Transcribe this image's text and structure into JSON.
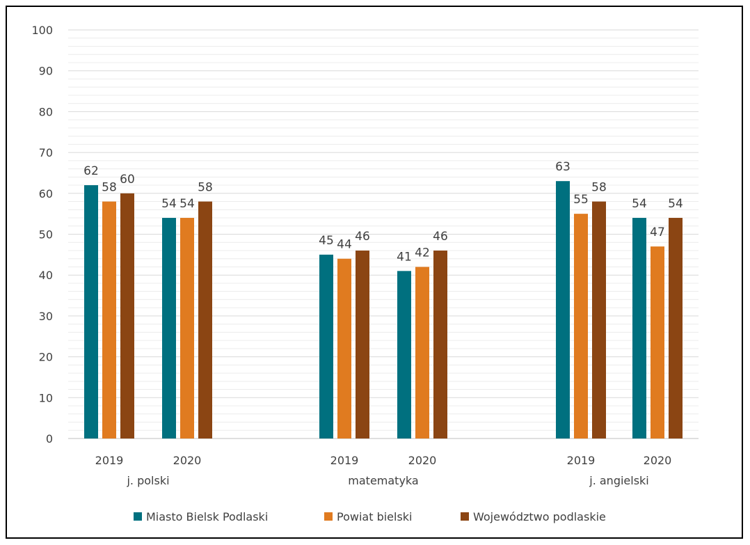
{
  "chart_data": {
    "type": "bar",
    "groups": [
      {
        "label": "j. polski",
        "years": [
          "2019",
          "2020"
        ]
      },
      {
        "label": "matematyka",
        "years": [
          "2019",
          "2020"
        ]
      },
      {
        "label": "j. angielski",
        "years": [
          "2019",
          "2020"
        ]
      }
    ],
    "series": [
      {
        "name": "Miasto Bielsk Podlaski",
        "color": "#00707F",
        "values": [
          62,
          54,
          45,
          41,
          63,
          54
        ]
      },
      {
        "name": "Powiat bielski",
        "color": "#E07B20",
        "values": [
          58,
          54,
          44,
          42,
          55,
          47
        ]
      },
      {
        "name": "Województwo podlaskie",
        "color": "#8B4513",
        "values": [
          60,
          58,
          46,
          46,
          58,
          54
        ]
      }
    ],
    "ylim": [
      0,
      100
    ],
    "yticks": [
      0,
      10,
      20,
      30,
      40,
      50,
      60,
      70,
      80,
      90,
      100
    ],
    "grid": true,
    "legend_position": "bottom"
  }
}
